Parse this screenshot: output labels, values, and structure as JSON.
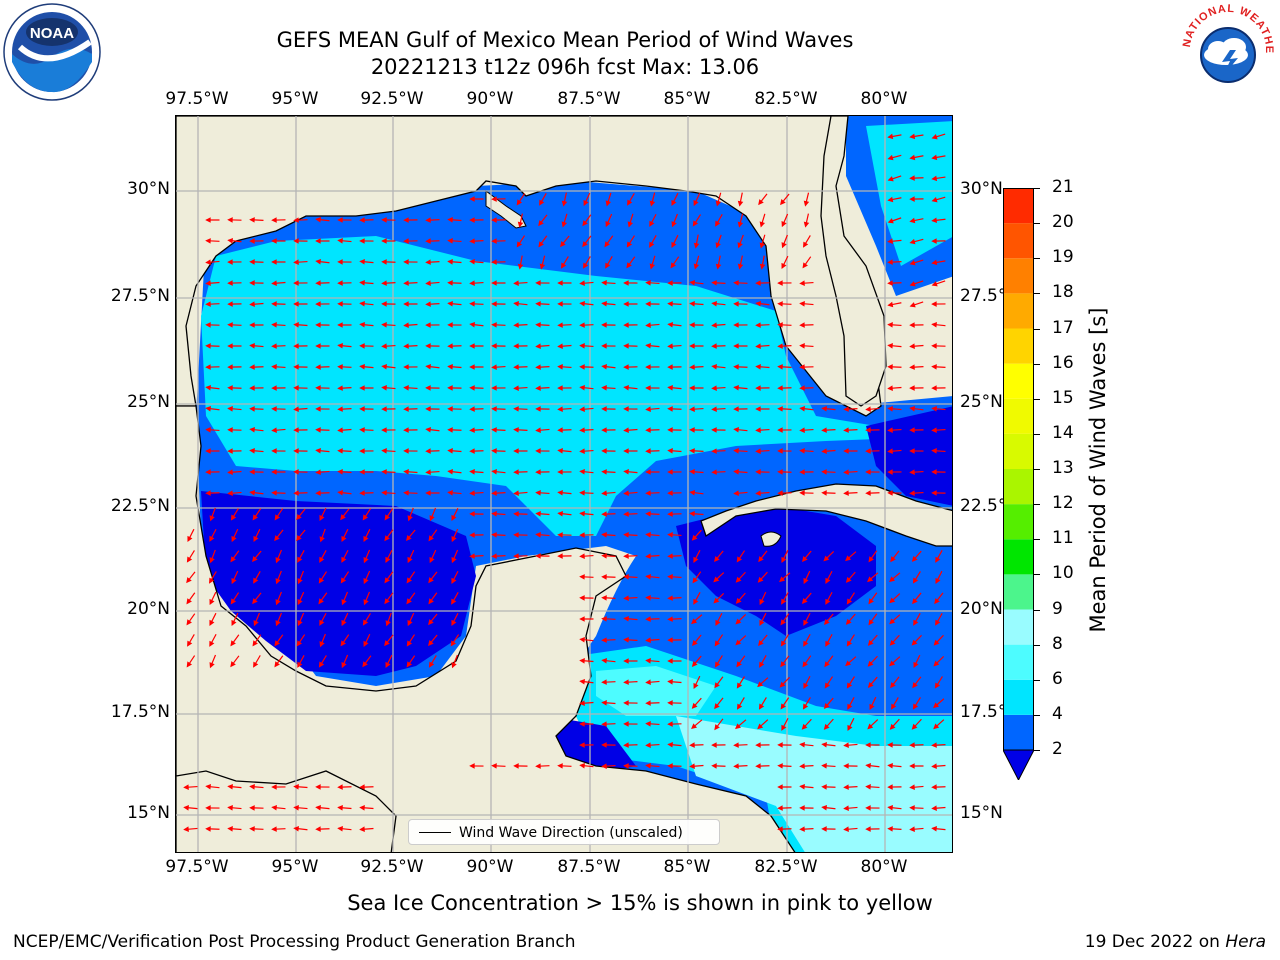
{
  "header": {
    "title_line1": "GEFS MEAN Gulf of Mexico Mean Period of Wind Waves",
    "title_line2": "20221213 t12z 096h fcst   Max: 13.06"
  },
  "map": {
    "lon_labels": [
      "97.5°W",
      "95°W",
      "92.5°W",
      "90°W",
      "87.5°W",
      "85°W",
      "82.5°W",
      "80°W"
    ],
    "lat_labels_left": [
      "30°N",
      "27.5°N",
      "25°N",
      "22.5°N",
      "20°N",
      "17.5°N",
      "15°N"
    ],
    "lat_labels_right": [
      "30°N",
      "27.5°",
      "25°N",
      "22.5°",
      "20°N",
      "17.5°",
      "15°N"
    ],
    "legend_label": "Wind Wave Direction (unscaled)",
    "land_color": "#efedda",
    "arrow_color": "#ff0000"
  },
  "colorbar": {
    "label": "Mean Period of Wind Waves [s]",
    "ticks": [
      "2",
      "4",
      "6",
      "8",
      "9",
      "10",
      "11",
      "12",
      "13",
      "14",
      "15",
      "16",
      "17",
      "18",
      "19",
      "20",
      "21"
    ],
    "colors": [
      "#0066ff",
      "#00e5ff",
      "#4dfcff",
      "#99fcff",
      "#4cf58c",
      "#00e600",
      "#55ee00",
      "#aaf500",
      "#d8fa00",
      "#f0fa00",
      "#ffff00",
      "#ffd400",
      "#ffaa00",
      "#ff8000",
      "#ff5500",
      "#ff2b00"
    ],
    "under_color": "#0000e6"
  },
  "notes": {
    "ice_note": "Sea Ice Concentration > 15% is shown in pink to yellow",
    "footer_left": "NCEP/EMC/Verification Post Processing Product Generation Branch",
    "footer_date": "19 Dec 2022 on ",
    "footer_host": "Hera"
  },
  "logos": {
    "noaa_text": "NOAA",
    "nws_text": "NATIONAL WEATHER SERVICE"
  }
}
